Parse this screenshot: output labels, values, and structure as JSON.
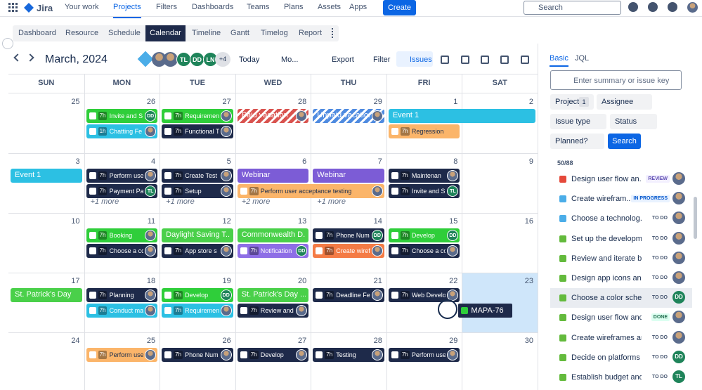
{
  "nav": {
    "logo": "Jira",
    "items": [
      "Your work",
      "Projects",
      "Filters",
      "Dashboards",
      "Teams",
      "Plans",
      "Assets",
      "Apps"
    ],
    "active": 1,
    "create": "Create",
    "search": "Search"
  },
  "tabs": {
    "items": [
      "Dashboard",
      "Resource",
      "Schedule",
      "Calendar",
      "Timeline",
      "Gantt",
      "Timelog",
      "Report"
    ],
    "active": 3
  },
  "toolbar": {
    "month": "March, 2024",
    "avatars": [
      "TL",
      "DD",
      "LN"
    ],
    "more": "+4",
    "today": "Today",
    "view": "Mo...",
    "export": "Export",
    "filter": "Filter",
    "issues": "Issues"
  },
  "calendar": {
    "weekdays": [
      "SUN",
      "MON",
      "TUE",
      "WED",
      "THU",
      "FRI",
      "SAT"
    ],
    "weeks": [
      {
        "days": [
          25,
          26,
          27,
          28,
          29,
          1,
          2
        ],
        "events": [
          {
            "date": 1,
            "days": 2,
            "label": "Event 1",
            "color": "#2cc0e3"
          },
          {
            "date": 26,
            "days": 1,
            "label": "Invite and S",
            "hours": "7h",
            "color": "#2fce3a",
            "avatar": "DD"
          },
          {
            "date": 27,
            "days": 1,
            "label": "Requirement",
            "hours": "7h",
            "color": "#2fce3a",
            "avatar": true
          },
          {
            "date": 28,
            "days": 1,
            "label": "Paid vacation",
            "color": "#d9534f",
            "striped": true,
            "avatar": true
          },
          {
            "date": 29,
            "days": 1,
            "label": "Unpaid vacation",
            "color": "#4f8be0",
            "striped": true,
            "avatar": true
          },
          {
            "date": 26,
            "days": 1,
            "label": "Chatting Fe",
            "hours": "1h",
            "color": "#2cc0e3",
            "avatar": true
          },
          {
            "date": 27,
            "days": 1,
            "label": "Functional T",
            "hours": "7h",
            "color": "#1e2a4a",
            "avatar": true
          },
          {
            "date": 1,
            "days": 1,
            "label": "Regression",
            "hours": "7h",
            "color": "#fbb56a"
          }
        ],
        "more": []
      },
      {
        "days": [
          3,
          4,
          5,
          6,
          7,
          8,
          9
        ],
        "events": [
          {
            "date": 3,
            "days": 1,
            "label": "Event 1",
            "color": "#2cc0e3"
          },
          {
            "date": 4,
            "days": 1,
            "label": "Perform use",
            "hours": "7h",
            "color": "#1e2a4a",
            "avatar": true
          },
          {
            "date": 4,
            "days": 1,
            "label": "Payment Pa",
            "hours": "7h",
            "color": "#1e2a4a",
            "avatar": "TL"
          },
          {
            "date": 5,
            "days": 1,
            "label": "Create Test",
            "hours": "7h",
            "color": "#1e2a4a",
            "avatar": true
          },
          {
            "date": 5,
            "days": 1,
            "label": "Setup",
            "hours": "7h",
            "color": "#1e2a4a",
            "avatar": true
          },
          {
            "date": 6,
            "days": 1,
            "label": "Webinar",
            "color": "#7c5cd6"
          },
          {
            "date": 7,
            "days": 1,
            "label": "Webinar",
            "color": "#7c5cd6"
          },
          {
            "date": 6,
            "days": 2,
            "label": "Perform user acceptance testing",
            "hours": "7h",
            "color": "#fbb56a",
            "avatar": true
          },
          {
            "date": 8,
            "days": 1,
            "label": "Maintenan",
            "hours": "7h",
            "color": "#1e2a4a",
            "avatar": true
          },
          {
            "date": 8,
            "days": 1,
            "label": "Invite and S",
            "hours": "7h",
            "color": "#1e2a4a",
            "avatar": "TL"
          }
        ],
        "more": [
          {
            "date": 4,
            "label": "+1 more"
          },
          {
            "date": 5,
            "label": "+1 more"
          },
          {
            "date": 6,
            "label": "+2 more"
          },
          {
            "date": 7,
            "label": "+1 more"
          }
        ]
      },
      {
        "days": [
          10,
          11,
          12,
          13,
          14,
          15,
          16
        ],
        "events": [
          {
            "date": 11,
            "days": 1,
            "label": "Booking",
            "hours": "7h",
            "color": "#2fce3a",
            "avatar": true
          },
          {
            "date": 11,
            "days": 1,
            "label": "Choose a co",
            "hours": "7h",
            "color": "#1e2a4a",
            "avatar": true
          },
          {
            "date": 12,
            "days": 1,
            "label": "Daylight Saving T...",
            "color": "#4ad04a"
          },
          {
            "date": 12,
            "days": 1,
            "label": "App store s",
            "hours": "7h",
            "color": "#1e2a4a",
            "avatar": true
          },
          {
            "date": 13,
            "days": 1,
            "label": "Commonwealth D...",
            "color": "#4ad04a"
          },
          {
            "date": 13,
            "days": 1,
            "label": "Notification",
            "hours": "7h",
            "color": "#8e6ee6",
            "avatar": "DD"
          },
          {
            "date": 14,
            "days": 1,
            "label": "Phone Num",
            "hours": "7h",
            "color": "#1e2a4a",
            "avatar": "DD"
          },
          {
            "date": 14,
            "days": 1,
            "label": "Create wiref",
            "hours": "7h",
            "color": "#f47b45",
            "avatar": true
          },
          {
            "date": 15,
            "days": 1,
            "label": "Develop",
            "hours": "7h",
            "color": "#2fce3a",
            "avatar": "DD"
          },
          {
            "date": 15,
            "days": 1,
            "label": "Choose a co",
            "hours": "7h",
            "color": "#1e2a4a",
            "avatar": true
          }
        ],
        "more": []
      },
      {
        "days": [
          17,
          18,
          19,
          20,
          21,
          22,
          23
        ],
        "events": [
          {
            "date": 17,
            "days": 1,
            "label": "St. Patrick's Day",
            "color": "#4ad04a"
          },
          {
            "date": 18,
            "days": 1,
            "label": "Planning",
            "hours": "7h",
            "color": "#1e2a4a",
            "avatar": true
          },
          {
            "date": 18,
            "days": 1,
            "label": "Conduct ma",
            "hours": "7h",
            "color": "#2cc0e3",
            "avatar": true
          },
          {
            "date": 19,
            "days": 1,
            "label": "Develop",
            "hours": "7h",
            "color": "#2fce3a",
            "avatar": "DD"
          },
          {
            "date": 19,
            "days": 1,
            "label": "Requirement",
            "hours": "7h",
            "color": "#2cc0e3",
            "avatar": true
          },
          {
            "date": 20,
            "days": 1,
            "label": "St. Patrick's Day ...",
            "color": "#4ad04a"
          },
          {
            "date": 20,
            "days": 1,
            "label": "Review and",
            "hours": "7h",
            "color": "#1e2a4a",
            "avatar": true
          },
          {
            "date": 21,
            "days": 1,
            "label": "Deadline Fe",
            "hours": "7h",
            "color": "#1e2a4a",
            "avatar": true
          },
          {
            "date": 22,
            "days": 1,
            "label": "Web Develo",
            "hours": "7h",
            "color": "#1e2a4a",
            "avatar": true
          }
        ],
        "more": [],
        "drop_target": {
          "date": 23,
          "label": "MAPA-76",
          "color": "#2fce3a"
        }
      },
      {
        "days": [
          24,
          25,
          26,
          27,
          28,
          29,
          30
        ],
        "events": [
          {
            "date": 25,
            "days": 1,
            "label": "Perform use",
            "hours": "7h",
            "color": "#fbb56a",
            "avatar": true
          },
          {
            "date": 26,
            "days": 1,
            "label": "Phone Num",
            "hours": "7h",
            "color": "#1e2a4a",
            "avatar": true
          },
          {
            "date": 27,
            "days": 1,
            "label": "Develop",
            "hours": "7h",
            "color": "#1e2a4a",
            "avatar": true
          },
          {
            "date": 28,
            "days": 1,
            "label": "Testing",
            "hours": "7h",
            "color": "#1e2a4a",
            "avatar": true
          },
          {
            "date": 29,
            "days": 1,
            "label": "Perform use",
            "hours": "7h",
            "color": "#1e2a4a",
            "avatar": true
          }
        ],
        "more": []
      }
    ]
  },
  "sidebar": {
    "tabs": [
      "Basic",
      "JQL"
    ],
    "search_placeholder": "Enter summary or issue key",
    "project": "Project",
    "project_count": 1,
    "filters": [
      "Assignee",
      "Issue type",
      "Status",
      "Planned?"
    ],
    "search_button": "Search",
    "count": "50/88",
    "issues": [
      {
        "title": "Design user flow an...",
        "status": "REVIEW",
        "icon_color": "#e5493a",
        "avatar": true
      },
      {
        "title": "Create wirefram...",
        "status": "IN PROGRESS",
        "icon_color": "#4bade8",
        "avatar": true
      },
      {
        "title": "Choose a technolog...",
        "status": "TO DO",
        "icon_color": "#4bade8",
        "avatar": true
      },
      {
        "title": "Set up the developm...",
        "status": "TO DO",
        "icon_color": "#63ba3c",
        "avatar": true
      },
      {
        "title": "Review and iterate b...",
        "status": "TO DO",
        "icon_color": "#63ba3c",
        "avatar": true
      },
      {
        "title": "Design app icons and...",
        "status": "TO DO",
        "icon_color": "#63ba3c",
        "avatar": true
      },
      {
        "title": "Choose a color sche...",
        "status": "TO DO",
        "icon_color": "#63ba3c",
        "avatar": "DD",
        "selected": true
      },
      {
        "title": "Design user flow and ...",
        "status": "DONE",
        "icon_color": "#63ba3c",
        "avatar": true
      },
      {
        "title": "Create wireframes an...",
        "status": "TO DO",
        "icon_color": "#63ba3c",
        "avatar": true
      },
      {
        "title": "Decide on platforms",
        "status": "TO DO",
        "icon_color": "#63ba3c",
        "avatar": "DD"
      },
      {
        "title": "Establish budget and ...",
        "status": "TO DO",
        "icon_color": "#63ba3c",
        "avatar": "TL"
      }
    ]
  }
}
